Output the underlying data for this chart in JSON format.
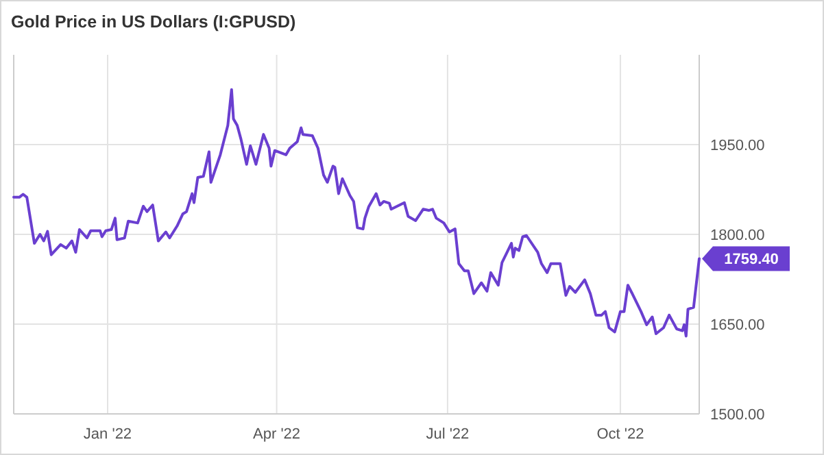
{
  "chart_data": {
    "type": "line",
    "title": "Gold Price in US Dollars (I:GPUSD)",
    "x": [
      "2021-11-12",
      "2021-11-15",
      "2021-11-17",
      "2021-11-19",
      "2021-11-23",
      "2021-11-26",
      "2021-11-28",
      "2021-11-30",
      "2021-12-02",
      "2021-12-07",
      "2021-12-10",
      "2021-12-13",
      "2021-12-15",
      "2021-12-17",
      "2021-12-21",
      "2021-12-23",
      "2021-12-28",
      "2021-12-29",
      "2021-12-31",
      "2022-01-03",
      "2022-01-05",
      "2022-01-06",
      "2022-01-10",
      "2022-01-12",
      "2022-01-17",
      "2022-01-20",
      "2022-01-22",
      "2022-01-25",
      "2022-01-28",
      "2022-02-01",
      "2022-02-03",
      "2022-02-07",
      "2022-02-10",
      "2022-02-12",
      "2022-02-15",
      "2022-02-16",
      "2022-02-18",
      "2022-02-21",
      "2022-02-24",
      "2022-02-25",
      "2022-03-02",
      "2022-03-06",
      "2022-03-08",
      "2022-03-09",
      "2022-03-11",
      "2022-03-13",
      "2022-03-16",
      "2022-03-18",
      "2022-03-21",
      "2022-03-25",
      "2022-03-28",
      "2022-03-29",
      "2022-03-31",
      "2022-04-06",
      "2022-04-08",
      "2022-04-12",
      "2022-04-14",
      "2022-04-15",
      "2022-04-20",
      "2022-04-23",
      "2022-04-26",
      "2022-04-28",
      "2022-05-01",
      "2022-05-02",
      "2022-05-04",
      "2022-05-06",
      "2022-05-10",
      "2022-05-12",
      "2022-05-14",
      "2022-05-17",
      "2022-05-18",
      "2022-05-20",
      "2022-05-24",
      "2022-05-26",
      "2022-05-28",
      "2022-05-31",
      "2022-06-01",
      "2022-06-08",
      "2022-06-10",
      "2022-06-14",
      "2022-06-18",
      "2022-06-21",
      "2022-06-23",
      "2022-06-25",
      "2022-06-29",
      "2022-07-02",
      "2022-07-05",
      "2022-07-07",
      "2022-07-10",
      "2022-07-12",
      "2022-07-15",
      "2022-07-19",
      "2022-07-22",
      "2022-07-24",
      "2022-07-28",
      "2022-07-30",
      "2022-08-02",
      "2022-08-04",
      "2022-08-05",
      "2022-08-06",
      "2022-08-08",
      "2022-08-10",
      "2022-08-12",
      "2022-08-18",
      "2022-08-20",
      "2022-08-23",
      "2022-08-25",
      "2022-08-30",
      "2022-09-02",
      "2022-09-04",
      "2022-09-07",
      "2022-09-12",
      "2022-09-15",
      "2022-09-18",
      "2022-09-21",
      "2022-09-23",
      "2022-09-25",
      "2022-09-28",
      "2022-10-01",
      "2022-10-03",
      "2022-10-05",
      "2022-10-07",
      "2022-10-12",
      "2022-10-15",
      "2022-10-18",
      "2022-10-20",
      "2022-10-24",
      "2022-10-27",
      "2022-10-31",
      "2022-11-03",
      "2022-11-04",
      "2022-11-05",
      "2022-11-06",
      "2022-11-09",
      "2022-11-12"
    ],
    "series": [
      {
        "color": "#6a3fd0",
        "values": [
          1862,
          1862,
          1867,
          1862,
          1785,
          1800,
          1789,
          1805,
          1766,
          1783,
          1777,
          1789,
          1770,
          1808,
          1794,
          1806,
          1806,
          1796,
          1806,
          1808,
          1827,
          1791,
          1794,
          1822,
          1819,
          1847,
          1838,
          1849,
          1789,
          1804,
          1794,
          1814,
          1834,
          1838,
          1868,
          1853,
          1895,
          1897,
          1938,
          1887,
          1933,
          1982,
          2042,
          1993,
          1982,
          1959,
          1917,
          1948,
          1917,
          1967,
          1944,
          1914,
          1940,
          1933,
          1944,
          1955,
          1978,
          1967,
          1965,
          1944,
          1899,
          1887,
          1914,
          1912,
          1868,
          1893,
          1865,
          1855,
          1811,
          1809,
          1827,
          1846,
          1868,
          1849,
          1855,
          1852,
          1842,
          1853,
          1830,
          1823,
          1842,
          1840,
          1842,
          1827,
          1819,
          1804,
          1809,
          1751,
          1739,
          1739,
          1701,
          1719,
          1705,
          1736,
          1715,
          1753,
          1772,
          1785,
          1762,
          1777,
          1773,
          1796,
          1798,
          1770,
          1751,
          1736,
          1751,
          1751,
          1698,
          1713,
          1703,
          1724,
          1701,
          1665,
          1665,
          1671,
          1644,
          1637,
          1671,
          1671,
          1715,
          1703,
          1671,
          1649,
          1662,
          1634,
          1644,
          1665,
          1642,
          1639,
          1649,
          1630,
          1675,
          1678,
          1759.4
        ]
      }
    ],
    "xlim": [
      "2021-11-12",
      "2022-11-12"
    ],
    "xticks": [
      {
        "value": "2022-01-01",
        "label": "Jan '22"
      },
      {
        "value": "2022-04-01",
        "label": "Apr '22"
      },
      {
        "value": "2022-07-01",
        "label": "Jul '22"
      },
      {
        "value": "2022-10-01",
        "label": "Oct '22"
      }
    ],
    "ylim": [
      1500,
      2100
    ],
    "yticks": [
      {
        "value": 1500,
        "label": "1500.00"
      },
      {
        "value": 1650,
        "label": "1650.00"
      },
      {
        "value": 1800,
        "label": "1800.00"
      },
      {
        "value": 1950,
        "label": "1950.00"
      }
    ],
    "grid": true,
    "annotations": [
      {
        "text": "1759.40",
        "x": "2022-11-12",
        "y": 1759.4
      }
    ]
  }
}
